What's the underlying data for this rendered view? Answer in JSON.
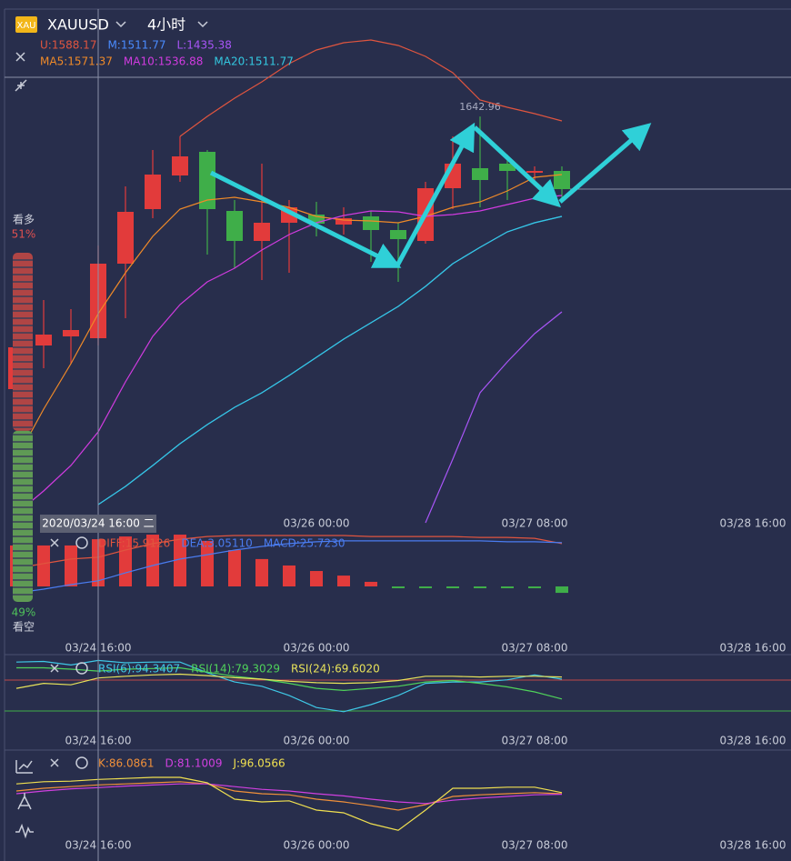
{
  "header": {
    "icon": "XAU",
    "symbol": "XAUUSD",
    "interval": "4小时"
  },
  "sentiment": {
    "bull_label": "看多",
    "bear_label": "看空",
    "values": [
      51,
      49
    ],
    "value_labels": [
      "51%",
      "49%"
    ],
    "colors": [
      "#b04545",
      "#5f9a55"
    ]
  },
  "chart_data": [
    {
      "type": "candlestick",
      "xlim": [
        -0.6,
        28.4
      ],
      "ylim": [
        1507.4,
        1678.4
      ],
      "xticks": [
        {
          "value": 11,
          "label": "03/26 00:00"
        },
        {
          "value": 19,
          "label": "03/27 08:00"
        },
        {
          "value": 27,
          "label": "03/28 16:00"
        }
      ],
      "crosshair": {
        "x": 3,
        "label": "2020/03/24 16:00 二"
      },
      "high_label": 1642.96,
      "up_color": "#e23b3b",
      "down_color": "#3fae49",
      "open": [
        1553.0,
        1567.4,
        1570.4,
        1569.8,
        1594.4,
        1612.4,
        1623.5,
        1631.3,
        1611.8,
        1601.9,
        1607.9,
        1610.6,
        1607.3,
        1610.0,
        1605.5,
        1601.9,
        1619.3,
        1625.9,
        1627.4,
        1624.4,
        1625.0
      ],
      "high": [
        1573.4,
        1582.4,
        1579.4,
        1600.4,
        1619.9,
        1631.9,
        1636.4,
        1631.9,
        1615.4,
        1627.4,
        1615.4,
        1614.8,
        1613.0,
        1611.8,
        1607.9,
        1621.4,
        1636.4,
        1642.96,
        1630.4,
        1626.5,
        1626.5
      ],
      "low": [
        1546.4,
        1559.9,
        1561.4,
        1567.4,
        1576.4,
        1609.4,
        1621.4,
        1597.4,
        1592.9,
        1589.0,
        1591.4,
        1603.4,
        1604.0,
        1595.0,
        1588.4,
        1601.0,
        1612.4,
        1613.0,
        1615.4,
        1621.4,
        1614.8
      ],
      "close": [
        1566.8,
        1571.0,
        1572.5,
        1594.4,
        1611.5,
        1623.8,
        1629.8,
        1612.4,
        1601.9,
        1607.9,
        1613.0,
        1607.6,
        1609.4,
        1605.5,
        1602.5,
        1619.3,
        1627.4,
        1622.0,
        1625.0,
        1625.0,
        1619.0
      ],
      "series": [
        {
          "name": "U:1588.17",
          "color": "#e0553f",
          "values": [
            null,
            null,
            null,
            null,
            null,
            null,
            1636.4,
            1643.0,
            1649.0,
            1654.4,
            1660.4,
            1664.9,
            1667.3,
            1668.2,
            1666.4,
            1662.8,
            1657.4,
            1648.4,
            1646.0,
            1643.9,
            1641.5
          ]
        },
        {
          "name": "M:1511.77",
          "color": "#4a8cff",
          "values": [
            null,
            null,
            null,
            1514.9,
            1520.9,
            1527.8,
            1535.0,
            1541.3,
            1547.0,
            1551.8,
            1557.5,
            1563.5,
            1569.5,
            1574.9,
            1580.3,
            1586.9,
            1594.4,
            1599.8,
            1604.9,
            1607.9,
            1610.0
          ]
        },
        {
          "name": "L:1435.38",
          "color": "#a855f7",
          "values": [
            null,
            null,
            null,
            null,
            null,
            null,
            null,
            null,
            null,
            null,
            null,
            null,
            null,
            null,
            null,
            1508.9,
            1529.9,
            1551.8,
            1562.0,
            1571.3,
            1578.5
          ]
        },
        {
          "name": "MA5:1571.37",
          "color": "#f08a28",
          "values": [
            1529.9,
            1546.4,
            1561.4,
            1577.9,
            1591.4,
            1603.4,
            1612.4,
            1615.4,
            1616.3,
            1614.8,
            1613.0,
            1610.0,
            1608.8,
            1608.5,
            1607.9,
            1610.0,
            1613.0,
            1614.8,
            1618.4,
            1622.9,
            1623.8
          ]
        },
        {
          "name": "MA10:1536.88",
          "color": "#d13be0",
          "values": [
            1511.9,
            1519.4,
            1527.8,
            1538.9,
            1555.4,
            1570.4,
            1580.9,
            1588.4,
            1592.9,
            1598.9,
            1604.0,
            1607.9,
            1610.3,
            1611.8,
            1611.5,
            1610.0,
            1610.6,
            1611.8,
            1613.9,
            1616.0,
            1616.9
          ]
        },
        {
          "name": "MA20:1511.77",
          "color": "#33c8e0",
          "values": [
            null,
            null,
            null,
            1514.9,
            1520.9,
            1527.8,
            1535.0,
            1541.3,
            1547.0,
            1551.8,
            1557.5,
            1563.5,
            1569.5,
            1574.9,
            1580.3,
            1586.9,
            1594.4,
            1599.8,
            1604.9,
            1607.9,
            1610.0
          ]
        }
      ]
    },
    {
      "type": "bar",
      "xlim": [
        -0.6,
        28.4
      ],
      "ylim": [
        -29.7,
        29.7
      ],
      "xticks": [
        {
          "value": 3,
          "label": "03/24 16:00"
        },
        {
          "value": 11,
          "label": "03/26 00:00"
        },
        {
          "value": 19,
          "label": "03/27 08:00"
        },
        {
          "value": 27,
          "label": "03/28 16:00"
        }
      ],
      "up_color": "#e23b3b",
      "down_color": "#3fae49",
      "series": [
        {
          "name": "DIFF:15.9126",
          "color": "#e0553f",
          "values": [
            9.9,
            12.4,
            14.9,
            15.9,
            19.8,
            23.3,
            25.7,
            27.2,
            27.7,
            27.7,
            27.7,
            27.7,
            27.7,
            27.2,
            27.2,
            27.2,
            27.2,
            26.7,
            26.7,
            26.2,
            23.3
          ]
        },
        {
          "name": "DEA:3.05110",
          "color": "#4a7cf0",
          "values": [
            -3.5,
            -1.5,
            1.0,
            3.05,
            7.4,
            11.4,
            14.9,
            17.3,
            19.8,
            21.8,
            23.3,
            24.3,
            24.8,
            24.8,
            24.8,
            24.8,
            24.8,
            24.8,
            24.3,
            24.3,
            23.8
          ]
        },
        {
          "name": "MACD:25.7230",
          "type": "bar",
          "color": "#4a7cf0",
          "values": [
            22.3,
            22.3,
            22.3,
            25.7,
            27.2,
            28.2,
            28.2,
            24.8,
            19.8,
            14.9,
            11.4,
            8.4,
            5.9,
            2.5,
            -0.5,
            -0.5,
            -0.5,
            -0.5,
            -0.6,
            -1.0,
            -3.5
          ]
        }
      ]
    },
    {
      "type": "line",
      "xlim": [
        -0.6,
        28.4
      ],
      "ylim": [
        0,
        100
      ],
      "xticks": [
        {
          "value": 3,
          "label": "03/24 16:00"
        },
        {
          "value": 11,
          "label": "03/26 00:00"
        },
        {
          "value": 19,
          "label": "03/27 08:00"
        },
        {
          "value": 27,
          "label": "03/28 16:00"
        }
      ],
      "series": [
        {
          "name": "RSI(6):94.3407",
          "color": "#3fc8e6",
          "values": [
            92,
            93,
            88,
            94.3,
            91,
            92,
            92,
            77,
            64,
            58,
            45,
            28,
            22,
            32,
            45,
            62,
            64,
            64,
            67,
            74,
            68
          ]
        },
        {
          "name": "RSI(14):79.3029",
          "color": "#4fd25a",
          "values": [
            84,
            84,
            82,
            79.3,
            82,
            83,
            84,
            78,
            72,
            68,
            62,
            55,
            52,
            55,
            58,
            64,
            66,
            62,
            57,
            50,
            40
          ]
        },
        {
          "name": "RSI(24):69.6020",
          "color": "#e8e35a",
          "values": [
            55,
            62,
            60,
            69.6,
            72,
            74,
            75,
            73,
            70,
            68,
            65,
            63,
            62,
            63,
            66,
            72,
            72,
            71,
            72,
            72,
            71
          ]
        }
      ]
    },
    {
      "type": "line",
      "xlim": [
        -0.6,
        28.4
      ],
      "ylim": [
        0,
        145
      ],
      "xticks": [
        {
          "value": 3,
          "label": "03/24 16:00"
        },
        {
          "value": 11,
          "label": "03/26 00:00"
        },
        {
          "value": 19,
          "label": "03/27 08:00"
        },
        {
          "value": 27,
          "label": "03/28 16:00"
        }
      ],
      "series": [
        {
          "name": "K:86.0861",
          "color": "#f0903a",
          "values": [
            75,
            80,
            83,
            86.1,
            88,
            90,
            92,
            88,
            75,
            70,
            68,
            60,
            55,
            48,
            40,
            50,
            65,
            68,
            70,
            72,
            70
          ]
        },
        {
          "name": "D:81.1009",
          "color": "#d040e0",
          "values": [
            70,
            75,
            79,
            81.1,
            84,
            86,
            88,
            88,
            83,
            78,
            75,
            70,
            66,
            60,
            55,
            52,
            58,
            62,
            65,
            68,
            69
          ]
        },
        {
          "name": "J:96.0566",
          "color": "#f0e050",
          "values": [
            88,
            92,
            93,
            96.1,
            98,
            100,
            100,
            90,
            60,
            55,
            57,
            40,
            35,
            15,
            3,
            40,
            80,
            80,
            82,
            82,
            72
          ]
        }
      ]
    }
  ]
}
